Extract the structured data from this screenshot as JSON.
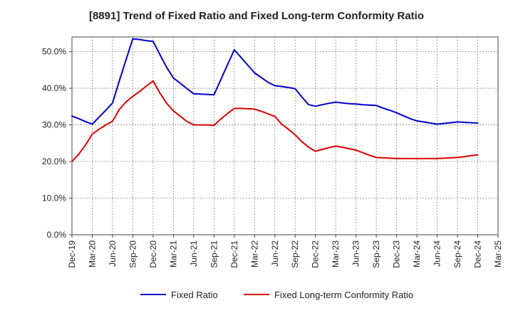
{
  "chart_data": {
    "type": "line",
    "title": "[8891]  Trend of Fixed Ratio and Fixed Long-term Conformity Ratio",
    "xlabel": "",
    "ylabel": "",
    "x_ticks": [
      "Dec-19",
      "Mar-20",
      "Jun-20",
      "Sep-20",
      "Dec-20",
      "Mar-21",
      "Jun-21",
      "Sep-21",
      "Dec-21",
      "Mar-22",
      "Jun-22",
      "Sep-22",
      "Dec-22",
      "Mar-23",
      "Jun-23",
      "Sep-23",
      "Dec-23",
      "Mar-24",
      "Jun-24",
      "Sep-24",
      "Dec-24",
      "Mar-25"
    ],
    "y_ticks": [
      "0.0%",
      "10.0%",
      "20.0%",
      "30.0%",
      "40.0%",
      "50.0%"
    ],
    "ylim": [
      0,
      54
    ],
    "grid": true,
    "legend_position": "bottom",
    "x": [
      "Dec-19",
      "Jan-20",
      "Feb-20",
      "Mar-20",
      "Apr-20",
      "May-20",
      "Jun-20",
      "Jul-20",
      "Aug-20",
      "Sep-20",
      "Oct-20",
      "Nov-20",
      "Dec-20",
      "Jan-21",
      "Feb-21",
      "Mar-21",
      "Apr-21",
      "May-21",
      "Jun-21",
      "Jul-21",
      "Aug-21",
      "Sep-21",
      "Oct-21",
      "Nov-21",
      "Dec-21",
      "Jan-22",
      "Feb-22",
      "Mar-22",
      "Apr-22",
      "May-22",
      "Jun-22",
      "Jul-22",
      "Aug-22",
      "Sep-22",
      "Oct-22",
      "Nov-22",
      "Dec-22",
      "Jan-23",
      "Feb-23",
      "Mar-23",
      "Apr-23",
      "May-23",
      "Jun-23",
      "Jul-23",
      "Aug-23",
      "Sep-23",
      "Oct-23",
      "Nov-23",
      "Dec-23",
      "Jan-24",
      "Feb-24",
      "Mar-24",
      "Apr-24",
      "May-24",
      "Jun-24",
      "Jul-24",
      "Aug-24",
      "Sep-24",
      "Oct-24",
      "Nov-24",
      "Dec-24"
    ],
    "series": [
      {
        "name": "Fixed Ratio",
        "color": "#0000cc",
        "values": [
          32.4,
          31.7,
          30.9,
          30.2,
          32.1,
          34.0,
          36.0,
          42.0,
          47.8,
          53.5,
          53.3,
          53.0,
          52.8,
          49.2,
          45.7,
          42.8,
          41.4,
          39.9,
          38.5,
          38.4,
          38.3,
          38.2,
          42.3,
          46.4,
          50.5,
          48.4,
          46.3,
          44.2,
          42.9,
          41.6,
          40.7,
          40.5,
          40.2,
          39.9,
          37.6,
          35.5,
          35.1,
          35.5,
          35.9,
          36.2,
          36.0,
          35.8,
          35.7,
          35.5,
          35.4,
          35.3,
          34.6,
          34.0,
          33.3,
          32.5,
          31.7,
          31.1,
          30.8,
          30.5,
          30.2,
          30.4,
          30.6,
          30.8,
          30.7,
          30.6,
          30.5
        ]
      },
      {
        "name": "Fixed Long-term Conformity Ratio",
        "color": "#dd0000",
        "values": [
          20.0,
          22.0,
          24.5,
          27.5,
          28.8,
          30.0,
          31.0,
          34.2,
          36.3,
          37.8,
          39.1,
          40.6,
          42.0,
          38.7,
          35.9,
          33.8,
          32.4,
          30.9,
          30.0,
          30.0,
          30.0,
          29.9,
          31.6,
          33.1,
          34.5,
          34.5,
          34.4,
          34.3,
          33.7,
          33.0,
          32.3,
          30.2,
          28.8,
          27.3,
          25.4,
          23.9,
          22.8,
          23.3,
          23.8,
          24.2,
          23.9,
          23.5,
          23.1,
          22.4,
          21.7,
          21.1,
          21.0,
          20.9,
          20.8,
          20.8,
          20.8,
          20.8,
          20.8,
          20.8,
          20.8,
          20.9,
          21.0,
          21.1,
          21.3,
          21.6,
          21.8
        ]
      }
    ]
  }
}
